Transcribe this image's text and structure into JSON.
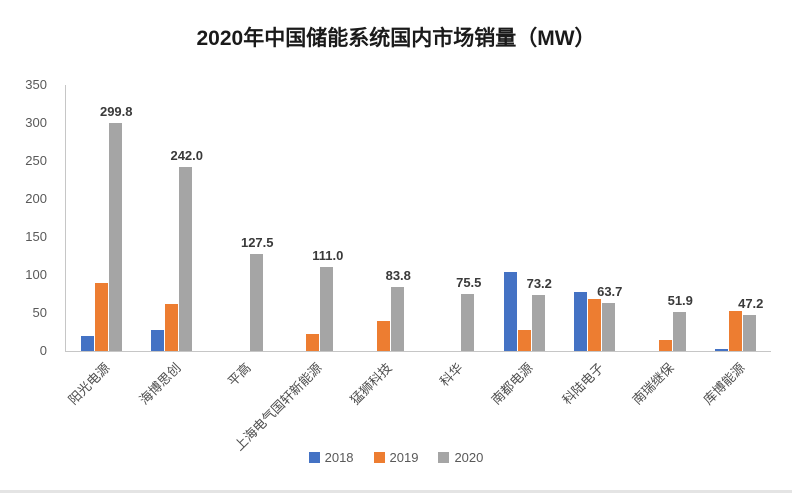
{
  "title": "2020年中国储能系统国内市场销量（MW）",
  "chart_data": {
    "type": "bar",
    "title": "2020年中国储能系统国内市场销量（MW）",
    "categories": [
      "阳光电源",
      "海博思创",
      "平高",
      "上海电气国轩新能源",
      "猛狮科技",
      "科华",
      "南都电源",
      "科陆电子",
      "南瑞继保",
      "库博能源"
    ],
    "series": [
      {
        "name": "2018",
        "color": "#4472c4",
        "values": [
          20,
          27,
          0,
          0,
          0,
          0,
          104,
          77,
          0,
          3
        ]
      },
      {
        "name": "2019",
        "color": "#ed7d31",
        "values": [
          90,
          62,
          0,
          22,
          40,
          0,
          28,
          68,
          15,
          53
        ]
      },
      {
        "name": "2020",
        "color": "#a5a5a5",
        "values": [
          299.8,
          242.0,
          127.5,
          111.0,
          83.8,
          75.5,
          73.2,
          63.7,
          51.9,
          47.2
        ]
      }
    ],
    "data_labels": [
      "299.8",
      "242.0",
      "127.5",
      "111.0",
      "83.8",
      "75.5",
      "73.2",
      "63.7",
      "51.9",
      "47.2"
    ],
    "data_label_series": "2020",
    "ylim": [
      0,
      350
    ],
    "yticks": [
      0,
      50,
      100,
      150,
      200,
      250,
      300,
      350
    ],
    "xlabel": "",
    "ylabel": "",
    "grid": false,
    "legend_position": "bottom"
  }
}
